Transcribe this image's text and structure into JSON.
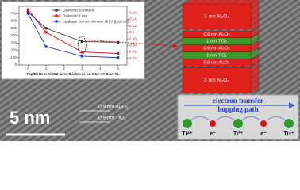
{
  "chart_data": {
    "type": "line",
    "x_label": "Top/Bottom Al2O3 layer thickness on 0.6A-1T-0.6A NL",
    "x": [
      0,
      1,
      3,
      5
    ],
    "xlim": [
      -0.5,
      5.5
    ],
    "xticks": [
      0,
      1,
      2,
      3,
      4,
      5
    ],
    "ylim": [
      0,
      800
    ],
    "yticks": [
      0,
      100,
      200,
      300,
      400,
      500,
      600,
      700
    ],
    "y2lim": [
      0,
      0.18
    ],
    "y2ticks": [
      0.02,
      0.04,
      0.06,
      0.08,
      0.1,
      0.12,
      0.14,
      0.16
    ],
    "series": [
      {
        "name": "Dielectric constant",
        "color": "#333333",
        "values": [
          720,
          500,
          320,
          310
        ]
      },
      {
        "name": "Dielectric Loss",
        "color": "#dd1111",
        "axis": "y2",
        "values": [
          0.17,
          0.1,
          0.04,
          0.035
        ]
      },
      {
        "name": "Leakage current density @1V (μA/cm²)",
        "color": "#2233cc",
        "values": [
          700,
          250,
          120,
          100
        ]
      }
    ]
  },
  "stack": {
    "layers": [
      {
        "label": "3 nm Al₂O₃",
        "color": "#e0201a"
      },
      {
        "label": "0.6 nm Al₂O₃",
        "color": "#e0201a"
      },
      {
        "label": "1 nm TiO₂",
        "color": "#3a9a2a"
      },
      {
        "label": "0.6 nm Al₂O₃",
        "color": "#e0201a"
      },
      {
        "label": "1 nm TiO₂",
        "color": "#3a9a2a"
      },
      {
        "label": "0.6 nm Al₂O₃",
        "color": "#e0201a"
      },
      {
        "label": "3 nm Al₂O₃",
        "color": "#e0201a"
      }
    ]
  },
  "hopping": {
    "title": "electron transfer",
    "subtitle": "hopping path",
    "nodes": [
      {
        "label": "Ti⁴⁺",
        "color": "#2a9a2a"
      },
      {
        "label": "e⁻",
        "color": "#dd1111"
      },
      {
        "label": "Ti³⁺",
        "color": "#2a9a2a"
      },
      {
        "label": "e⁻",
        "color": "#dd1111"
      },
      {
        "label": "Ti⁴⁺",
        "color": "#2a9a2a"
      }
    ]
  },
  "tem": {
    "scale_bar": "5 nm",
    "labels": [
      "0.9 nm Al₂O₃",
      "0.9 nm TiO₂"
    ]
  }
}
